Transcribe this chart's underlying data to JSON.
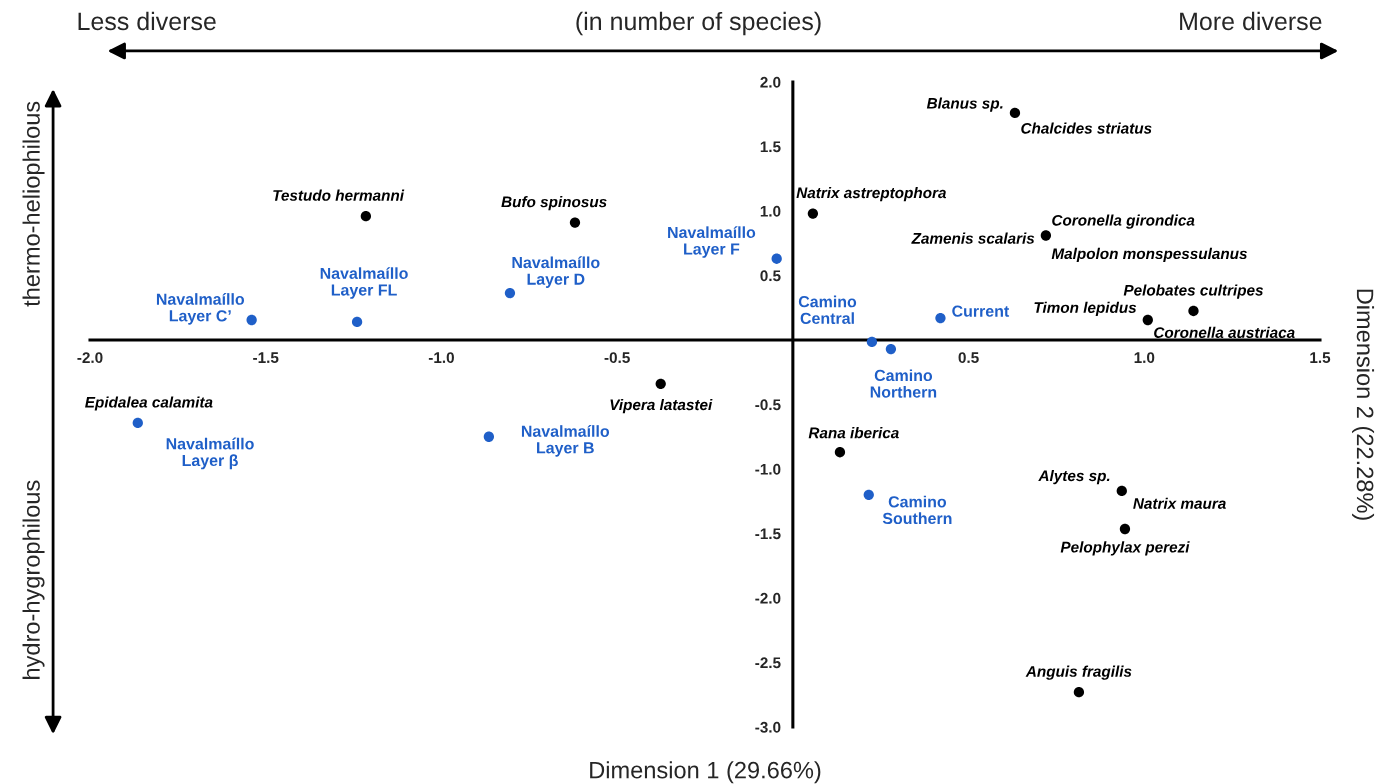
{
  "chart_data": {
    "type": "scatter",
    "xlabel": "Dimension 1 (29.66%)",
    "ylabel": "Dimension 2 (22.28%)",
    "xlim": [
      -2.0,
      1.5
    ],
    "ylim": [
      -3.0,
      2.0
    ],
    "xticks": [
      {
        "value": -2,
        "label": "-2.0"
      },
      -1.5,
      {
        "value": -1,
        "label": "-1.0"
      },
      -0.5,
      0.5,
      {
        "value": 1,
        "label": "1.0"
      },
      1.5
    ],
    "yticks": [
      {
        "value": -3,
        "label": "-3.0"
      },
      -2.5,
      {
        "value": -2,
        "label": "-2.0"
      },
      -1.5,
      {
        "value": -1,
        "label": "-1.0"
      },
      -0.5,
      0.5,
      {
        "value": 1,
        "label": "1.0"
      },
      1.5,
      {
        "value": 2,
        "label": "2.0"
      }
    ],
    "grid": false,
    "marker": "circle",
    "series": [
      {
        "color": "#000000",
        "x": [
          0.632,
          -1.215,
          -0.62,
          0.057,
          0.72,
          1.01,
          1.14,
          -0.376,
          0.134,
          0.936,
          0.945,
          0.814
        ],
        "values": [
          1.76,
          0.96,
          0.91,
          0.98,
          0.81,
          0.155,
          0.225,
          -0.34,
          -0.87,
          -1.17,
          -1.465,
          -2.73
        ]
      },
      {
        "color": "#1f5fc8",
        "x": [
          -1.54,
          -1.24,
          -0.805,
          -0.046,
          0.225,
          0.279,
          0.42,
          -1.864,
          -0.865,
          0.216
        ],
        "values": [
          0.155,
          0.14,
          0.364,
          0.63,
          -0.015,
          -0.07,
          0.17,
          -0.643,
          -0.75,
          -1.2
        ]
      }
    ],
    "annotations": [
      {
        "text": "Blanus sp.",
        "x": 0.632,
        "y": 1.76
      },
      {
        "text": "Chalcides striatus",
        "x": 0.632,
        "y": 1.76
      },
      {
        "text": "Testudo hermanni",
        "x": -1.215,
        "y": 0.96
      },
      {
        "text": "Bufo spinosus",
        "x": -0.62,
        "y": 0.91
      },
      {
        "text": "Natrix astreptophora",
        "x": 0.057,
        "y": 0.98
      },
      {
        "text": "Coronella girondica",
        "x": 0.72,
        "y": 0.81
      },
      {
        "text": "Zamenis scalaris",
        "x": 0.72,
        "y": 0.81
      },
      {
        "text": "Malpolon monspessulanus",
        "x": 0.72,
        "y": 0.81
      },
      {
        "text": "Timon lepidus",
        "x": 1.01,
        "y": 0.155
      },
      {
        "text": "Coronella austriaca",
        "x": 1.01,
        "y": 0.155
      },
      {
        "text": "Pelobates cultripes",
        "x": 1.14,
        "y": 0.225
      },
      {
        "text": "Vipera latastei",
        "x": -0.376,
        "y": -0.34
      },
      {
        "text": "Rana iberica",
        "x": 0.134,
        "y": -0.87
      },
      {
        "text": "Alytes sp.",
        "x": 0.936,
        "y": -1.17
      },
      {
        "text": "Natrix maura",
        "x": 0.936,
        "y": -1.17
      },
      {
        "text": "Pelophylax perezi",
        "x": 0.945,
        "y": -1.465
      },
      {
        "text": "Anguis fragilis",
        "x": 0.814,
        "y": -2.73
      },
      {
        "text": "Epidalea calamita",
        "x": -1.864,
        "y": -0.643
      },
      {
        "text": "Navalmaíllo\nLayer C’",
        "x": -1.54,
        "y": 0.155
      },
      {
        "text": "Navalmaíllo\nLayer FL",
        "x": -1.24,
        "y": 0.14
      },
      {
        "text": "Navalmaíllo\nLayer D",
        "x": -0.805,
        "y": 0.364
      },
      {
        "text": "Navalmaíllo\nLayer F",
        "x": -0.046,
        "y": 0.63
      },
      {
        "text": "Camino\nCentral",
        "x": 0.225,
        "y": -0.015
      },
      {
        "text": "Camino\nNorthern",
        "x": 0.279,
        "y": -0.07
      },
      {
        "text": "Current",
        "x": 0.42,
        "y": 0.17
      },
      {
        "text": "Navalmaíllo\nLayer β",
        "x": -1.864,
        "y": -0.643
      },
      {
        "text": "Navalmaíllo\nLayer B",
        "x": -0.865,
        "y": -0.75
      },
      {
        "text": "Camino\nSouthern",
        "x": 0.216,
        "y": -1.2
      },
      "Less diverse",
      "(in number of species)",
      "More diverse",
      "thermo-heliophilous",
      "hydro-hygrophilous"
    ]
  }
}
